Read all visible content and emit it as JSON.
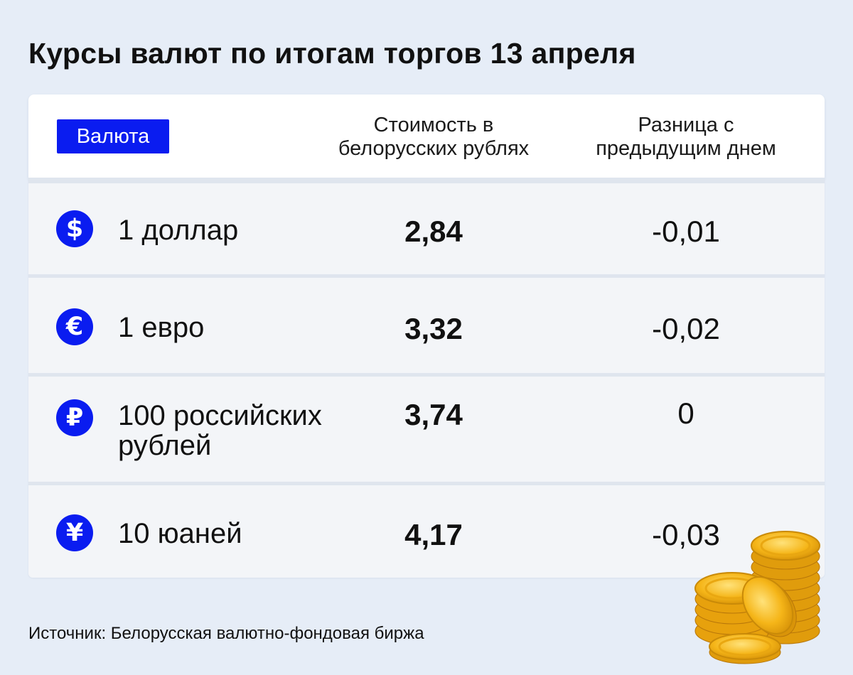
{
  "title": "Курсы валют по итогам торгов 13 апреля",
  "header": {
    "currency": "Валюта",
    "value_line1": "Стоимость в",
    "value_line2": "белорусских рублях",
    "diff_line1": "Разница с",
    "diff_line2": "предыдущим днем"
  },
  "rows": [
    {
      "icon": "dollar-icon",
      "symbol": "$",
      "name": "1 доллар",
      "rate": "2,84",
      "diff": "-0,01"
    },
    {
      "icon": "euro-icon",
      "symbol": "€",
      "name": "1 евро",
      "rate": "3,32",
      "diff": "-0,02"
    },
    {
      "icon": "ruble-icon",
      "symbol": "₽",
      "name_line1": "100 российских",
      "name_line2": "рублей",
      "rate": "3,74",
      "diff": "0"
    },
    {
      "icon": "yuan-icon",
      "symbol": "¥",
      "name": "10 юаней",
      "rate": "4,17",
      "diff": "-0,03"
    }
  ],
  "source": "Источник: Белорусская валютно-фондовая биржа",
  "colors": {
    "background": "#e6edf7",
    "accent": "#0a1cf0",
    "row": "#f3f5f8",
    "coin": "#f5b518"
  }
}
